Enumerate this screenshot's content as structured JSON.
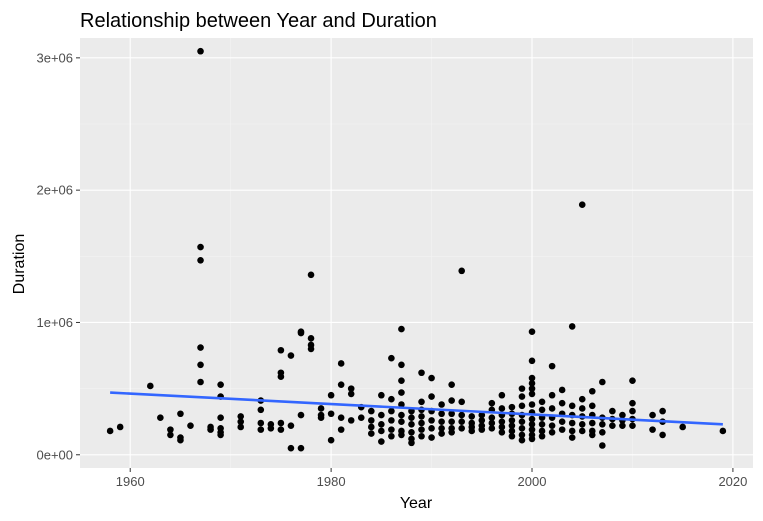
{
  "chart_data": {
    "type": "scatter",
    "title": "Relationship between Year and Duration",
    "xlabel": "Year",
    "ylabel": "Duration",
    "xlim": [
      1955,
      2022
    ],
    "ylim": [
      -100000,
      3150000
    ],
    "x_ticks": [
      1960,
      1980,
      2000,
      2020
    ],
    "x_tick_labels": [
      "1960",
      "1980",
      "2000",
      "2020"
    ],
    "y_ticks": [
      0,
      1000000,
      2000000,
      3000000
    ],
    "y_tick_labels": [
      "0e+00",
      "1e+06",
      "2e+06",
      "3e+06"
    ],
    "grid": true,
    "panel_background": "#ebebeb",
    "point_color": "#000000",
    "trend_color": "#3366ff",
    "trend_line": {
      "x": [
        1958,
        2019
      ],
      "y": [
        470000,
        230000
      ]
    },
    "points": [
      [
        1958,
        180000
      ],
      [
        1959,
        210000
      ],
      [
        1962,
        520000
      ],
      [
        1963,
        280000
      ],
      [
        1964,
        190000
      ],
      [
        1964,
        150000
      ],
      [
        1965,
        310000
      ],
      [
        1965,
        130000
      ],
      [
        1965,
        110000
      ],
      [
        1966,
        220000
      ],
      [
        1967,
        3050000
      ],
      [
        1967,
        1570000
      ],
      [
        1967,
        1470000
      ],
      [
        1967,
        810000
      ],
      [
        1967,
        680000
      ],
      [
        1967,
        550000
      ],
      [
        1968,
        210000
      ],
      [
        1968,
        190000
      ],
      [
        1969,
        530000
      ],
      [
        1969,
        440000
      ],
      [
        1969,
        280000
      ],
      [
        1969,
        200000
      ],
      [
        1969,
        170000
      ],
      [
        1969,
        150000
      ],
      [
        1971,
        290000
      ],
      [
        1971,
        250000
      ],
      [
        1971,
        210000
      ],
      [
        1973,
        410000
      ],
      [
        1973,
        340000
      ],
      [
        1973,
        240000
      ],
      [
        1973,
        190000
      ],
      [
        1974,
        230000
      ],
      [
        1974,
        200000
      ],
      [
        1975,
        790000
      ],
      [
        1975,
        620000
      ],
      [
        1975,
        590000
      ],
      [
        1975,
        240000
      ],
      [
        1975,
        190000
      ],
      [
        1976,
        750000
      ],
      [
        1976,
        220000
      ],
      [
        1976,
        50000
      ],
      [
        1977,
        930000
      ],
      [
        1977,
        920000
      ],
      [
        1977,
        300000
      ],
      [
        1977,
        50000
      ],
      [
        1978,
        1360000
      ],
      [
        1978,
        880000
      ],
      [
        1978,
        830000
      ],
      [
        1978,
        800000
      ],
      [
        1979,
        350000
      ],
      [
        1979,
        300000
      ],
      [
        1979,
        280000
      ],
      [
        1980,
        450000
      ],
      [
        1980,
        310000
      ],
      [
        1980,
        110000
      ],
      [
        1981,
        690000
      ],
      [
        1981,
        530000
      ],
      [
        1981,
        280000
      ],
      [
        1981,
        190000
      ],
      [
        1982,
        500000
      ],
      [
        1982,
        460000
      ],
      [
        1982,
        260000
      ],
      [
        1983,
        360000
      ],
      [
        1983,
        280000
      ],
      [
        1984,
        330000
      ],
      [
        1984,
        260000
      ],
      [
        1984,
        210000
      ],
      [
        1984,
        160000
      ],
      [
        1985,
        450000
      ],
      [
        1985,
        300000
      ],
      [
        1985,
        230000
      ],
      [
        1985,
        180000
      ],
      [
        1985,
        100000
      ],
      [
        1986,
        730000
      ],
      [
        1986,
        420000
      ],
      [
        1986,
        330000
      ],
      [
        1986,
        260000
      ],
      [
        1986,
        190000
      ],
      [
        1986,
        140000
      ],
      [
        1987,
        950000
      ],
      [
        1987,
        680000
      ],
      [
        1987,
        560000
      ],
      [
        1987,
        470000
      ],
      [
        1987,
        380000
      ],
      [
        1987,
        300000
      ],
      [
        1987,
        250000
      ],
      [
        1987,
        180000
      ],
      [
        1987,
        150000
      ],
      [
        1988,
        330000
      ],
      [
        1988,
        280000
      ],
      [
        1988,
        230000
      ],
      [
        1988,
        170000
      ],
      [
        1988,
        120000
      ],
      [
        1988,
        90000
      ],
      [
        1989,
        620000
      ],
      [
        1989,
        400000
      ],
      [
        1989,
        340000
      ],
      [
        1989,
        290000
      ],
      [
        1989,
        240000
      ],
      [
        1989,
        190000
      ],
      [
        1989,
        140000
      ],
      [
        1990,
        580000
      ],
      [
        1990,
        440000
      ],
      [
        1990,
        330000
      ],
      [
        1990,
        260000
      ],
      [
        1990,
        200000
      ],
      [
        1990,
        130000
      ],
      [
        1991,
        380000
      ],
      [
        1991,
        310000
      ],
      [
        1991,
        250000
      ],
      [
        1991,
        200000
      ],
      [
        1991,
        160000
      ],
      [
        1992,
        530000
      ],
      [
        1992,
        410000
      ],
      [
        1992,
        310000
      ],
      [
        1992,
        250000
      ],
      [
        1992,
        200000
      ],
      [
        1992,
        170000
      ],
      [
        1993,
        1390000
      ],
      [
        1993,
        400000
      ],
      [
        1993,
        300000
      ],
      [
        1993,
        250000
      ],
      [
        1993,
        200000
      ],
      [
        1994,
        290000
      ],
      [
        1994,
        240000
      ],
      [
        1994,
        210000
      ],
      [
        1994,
        180000
      ],
      [
        1995,
        300000
      ],
      [
        1995,
        260000
      ],
      [
        1995,
        220000
      ],
      [
        1995,
        190000
      ],
      [
        1996,
        390000
      ],
      [
        1996,
        340000
      ],
      [
        1996,
        280000
      ],
      [
        1996,
        240000
      ],
      [
        1996,
        200000
      ],
      [
        1997,
        450000
      ],
      [
        1997,
        350000
      ],
      [
        1997,
        300000
      ],
      [
        1997,
        250000
      ],
      [
        1997,
        210000
      ],
      [
        1997,
        170000
      ],
      [
        1998,
        360000
      ],
      [
        1998,
        310000
      ],
      [
        1998,
        260000
      ],
      [
        1998,
        220000
      ],
      [
        1998,
        180000
      ],
      [
        1998,
        140000
      ],
      [
        1999,
        500000
      ],
      [
        1999,
        440000
      ],
      [
        1999,
        370000
      ],
      [
        1999,
        300000
      ],
      [
        1999,
        250000
      ],
      [
        1999,
        200000
      ],
      [
        1999,
        150000
      ],
      [
        1999,
        110000
      ],
      [
        2000,
        930000
      ],
      [
        2000,
        710000
      ],
      [
        2000,
        580000
      ],
      [
        2000,
        540000
      ],
      [
        2000,
        500000
      ],
      [
        2000,
        460000
      ],
      [
        2000,
        380000
      ],
      [
        2000,
        320000
      ],
      [
        2000,
        270000
      ],
      [
        2000,
        230000
      ],
      [
        2000,
        190000
      ],
      [
        2000,
        150000
      ],
      [
        2000,
        120000
      ],
      [
        2001,
        400000
      ],
      [
        2001,
        340000
      ],
      [
        2001,
        280000
      ],
      [
        2001,
        230000
      ],
      [
        2001,
        180000
      ],
      [
        2001,
        140000
      ],
      [
        2002,
        670000
      ],
      [
        2002,
        450000
      ],
      [
        2002,
        350000
      ],
      [
        2002,
        280000
      ],
      [
        2002,
        220000
      ],
      [
        2002,
        170000
      ],
      [
        2003,
        490000
      ],
      [
        2003,
        390000
      ],
      [
        2003,
        310000
      ],
      [
        2003,
        250000
      ],
      [
        2003,
        190000
      ],
      [
        2004,
        970000
      ],
      [
        2004,
        370000
      ],
      [
        2004,
        300000
      ],
      [
        2004,
        240000
      ],
      [
        2004,
        180000
      ],
      [
        2004,
        130000
      ],
      [
        2005,
        1890000
      ],
      [
        2005,
        420000
      ],
      [
        2005,
        350000
      ],
      [
        2005,
        290000
      ],
      [
        2005,
        230000
      ],
      [
        2005,
        180000
      ],
      [
        2006,
        480000
      ],
      [
        2006,
        370000
      ],
      [
        2006,
        300000
      ],
      [
        2006,
        240000
      ],
      [
        2006,
        180000
      ],
      [
        2006,
        150000
      ],
      [
        2007,
        550000
      ],
      [
        2007,
        280000
      ],
      [
        2007,
        230000
      ],
      [
        2007,
        170000
      ],
      [
        2007,
        70000
      ],
      [
        2008,
        330000
      ],
      [
        2008,
        270000
      ],
      [
        2008,
        220000
      ],
      [
        2009,
        300000
      ],
      [
        2009,
        260000
      ],
      [
        2009,
        220000
      ],
      [
        2010,
        560000
      ],
      [
        2010,
        390000
      ],
      [
        2010,
        330000
      ],
      [
        2010,
        270000
      ],
      [
        2010,
        220000
      ],
      [
        2012,
        300000
      ],
      [
        2012,
        190000
      ],
      [
        2013,
        330000
      ],
      [
        2013,
        250000
      ],
      [
        2013,
        150000
      ],
      [
        2015,
        210000
      ],
      [
        2019,
        180000
      ]
    ]
  }
}
